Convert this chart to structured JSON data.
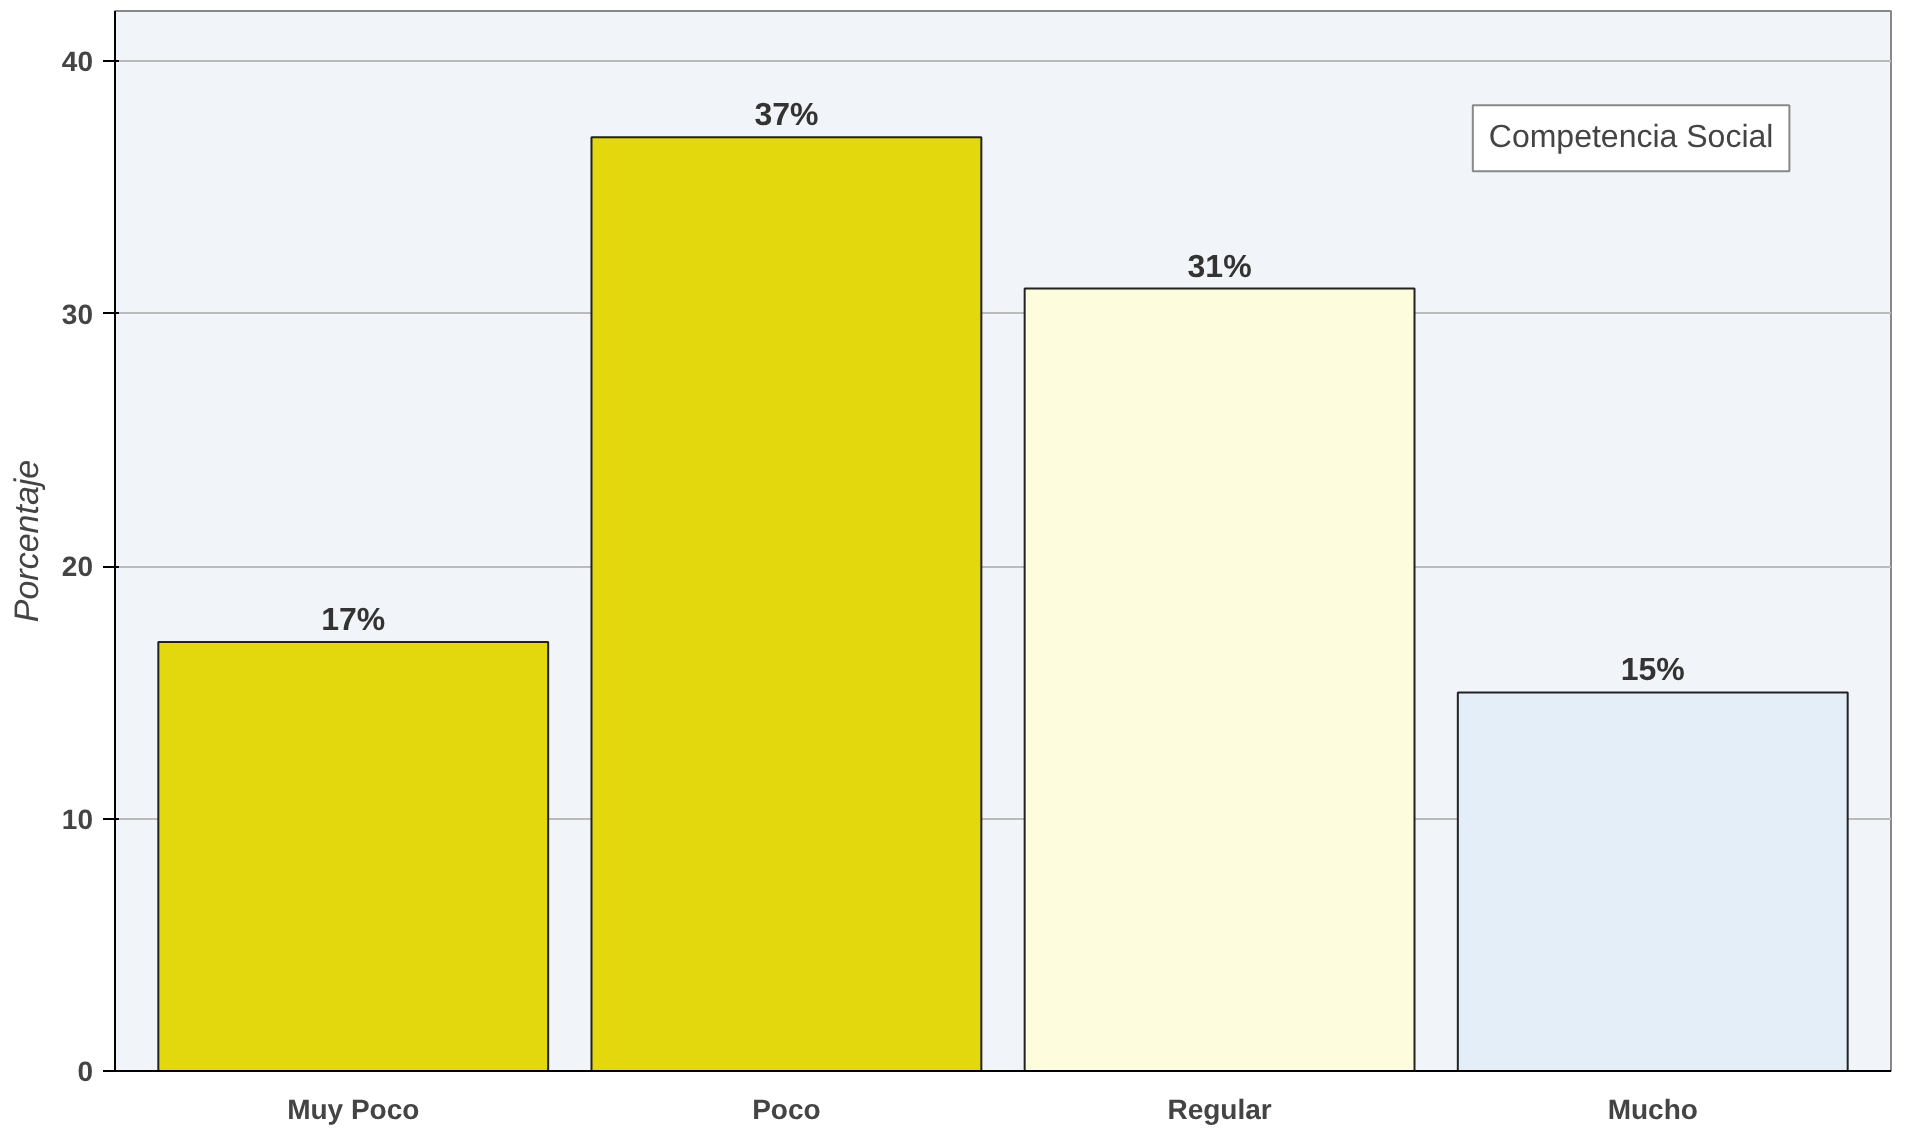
{
  "chart_data": {
    "type": "bar",
    "ylabel": "Porcentaje",
    "categories": [
      "Muy Poco",
      "Poco",
      "Regular",
      "Mucho"
    ],
    "series": [
      {
        "name": "Competencia Social",
        "colors": [
          "#e3d70e",
          "#e3d70e",
          "#fdfcdc",
          "#e3eef9"
        ],
        "values": [
          17,
          37,
          31,
          15
        ]
      }
    ],
    "value_labels": [
      "17%",
      "37%",
      "31%",
      "15%"
    ],
    "ylim": [
      0,
      42
    ],
    "yticks": [
      0,
      10,
      20,
      30,
      40
    ],
    "grid": "y",
    "legend": "top right"
  }
}
